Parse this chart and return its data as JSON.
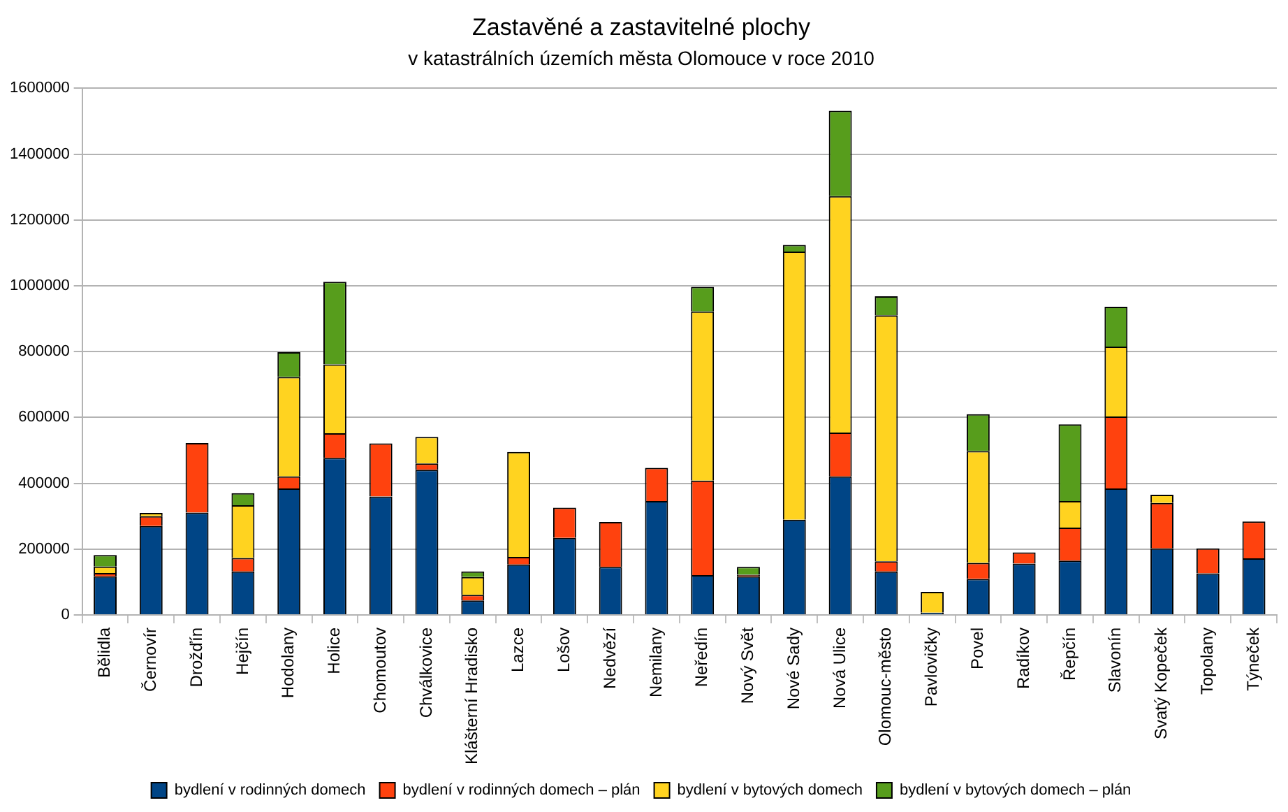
{
  "chart_data": {
    "type": "bar",
    "title": "Zastavěné a zastavitelné plochy",
    "subtitle": "v katastrálních územích města Olomouce v roce 2010",
    "categories": [
      "Bělidla",
      "Černovír",
      "Drožďín",
      "Hejčín",
      "Hodolany",
      "Holice",
      "Chomoutov",
      "Chválkovice",
      "Klášterní Hradisko",
      "Lazce",
      "Lošov",
      "Nedvězí",
      "Nemilany",
      "Neředín",
      "Nový Svět",
      "Nové Sady",
      "Nová Ulice",
      "Olomouc-město",
      "Pavlovičky",
      "Povel",
      "Radíkov",
      "Řepčín",
      "Slavonín",
      "Svatý Kopeček",
      "Topolany",
      "Týneček"
    ],
    "series": [
      {
        "name": "bydlení v rodinných domech",
        "color": "#004586",
        "values": [
          117000,
          270000,
          311000,
          132000,
          384000,
          477000,
          360000,
          441000,
          44000,
          153000,
          234000,
          146000,
          346000,
          121000,
          117000,
          289000,
          421000,
          132000,
          7000,
          109000,
          156000,
          165000,
          384000,
          202000,
          126000,
          172000
        ]
      },
      {
        "name": "bydlení v rodinných domech – plán",
        "color": "#ff420e",
        "values": [
          10000,
          30000,
          211000,
          41000,
          37000,
          75000,
          161000,
          19000,
          17000,
          23000,
          92000,
          136000,
          101000,
          287000,
          5000,
          0,
          133000,
          31000,
          0,
          49000,
          34000,
          100000,
          219000,
          138000,
          76000,
          112000
        ]
      },
      {
        "name": "bydlení v bytových domech",
        "color": "#ffd320",
        "values": [
          20000,
          10000,
          0,
          160000,
          302000,
          209000,
          0,
          81000,
          54000,
          319000,
          0,
          0,
          0,
          514000,
          0,
          815000,
          718000,
          747000,
          63000,
          340000,
          0,
          81000,
          212000,
          25000,
          0,
          0
        ]
      },
      {
        "name": "bydlení v bytových domech – plán",
        "color": "#579d1c",
        "values": [
          35000,
          0,
          0,
          37000,
          75000,
          251000,
          0,
          0,
          17000,
          0,
          0,
          0,
          0,
          75000,
          24000,
          20000,
          260000,
          58000,
          0,
          112000,
          0,
          233000,
          121000,
          0,
          0,
          0
        ]
      }
    ],
    "stacked": true,
    "ylim": [
      0,
      1600000
    ],
    "yticks": [
      0,
      200000,
      400000,
      600000,
      800000,
      1000000,
      1200000,
      1400000,
      1600000
    ],
    "grid": "y",
    "legend": "bottom"
  }
}
